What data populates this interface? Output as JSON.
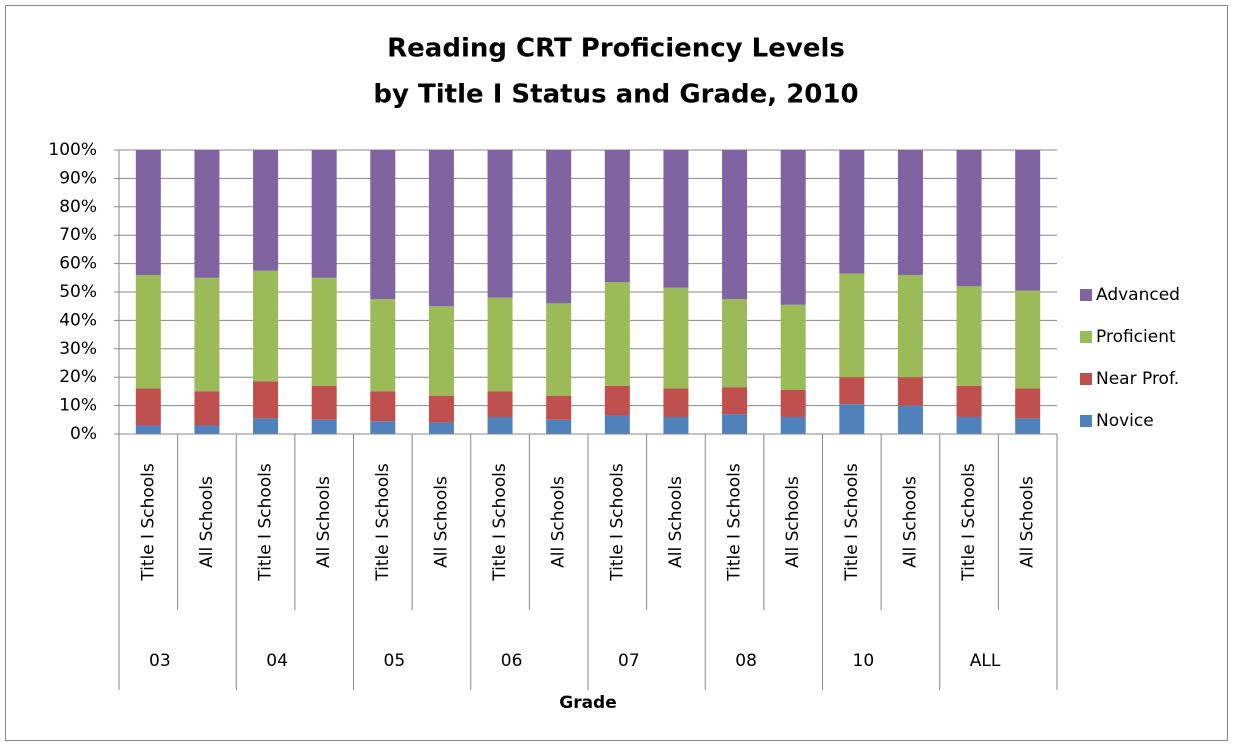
{
  "chart_data": {
    "type": "stacked_bar",
    "title": [
      "Reading CRT Proficiency Levels",
      "by Title I Status and Grade, 2010"
    ],
    "x_label": "Grade",
    "categories": [
      "Title I Schools",
      "All Schools",
      "Title I Schools",
      "All Schools",
      "Title I Schools",
      "All Schools",
      "Title I Schools",
      "All Schools",
      "Title I Schools",
      "All Schools",
      "Title I Schools",
      "All Schools",
      "Title I Schools",
      "All Schools",
      "Title I Schools",
      "All Schools"
    ],
    "groups": [
      "03",
      "04",
      "05",
      "06",
      "07",
      "08",
      "10",
      "ALL"
    ],
    "series": [
      {
        "name": "Novice",
        "color": "#4f81bd",
        "values": [
          3,
          3,
          5.5,
          5,
          4.5,
          4,
          6,
          5,
          6.5,
          6,
          7,
          6,
          10.5,
          10,
          6,
          5.5
        ]
      },
      {
        "name": "Near Prof.",
        "color": "#c0504d",
        "values": [
          13,
          12,
          13,
          12,
          10.5,
          9.5,
          9,
          8.5,
          10.5,
          10,
          9.5,
          9.5,
          9.5,
          10,
          11,
          10.5
        ]
      },
      {
        "name": "Proficient",
        "color": "#9bbb59",
        "values": [
          40,
          40,
          39,
          38,
          32.5,
          31.5,
          33,
          32.5,
          36.5,
          35.5,
          31,
          30,
          36.5,
          36,
          35,
          34.5
        ]
      },
      {
        "name": "Advanced",
        "color": "#8064a2",
        "values": [
          44,
          45,
          42.5,
          45,
          52.5,
          55,
          52,
          54,
          46.5,
          48.5,
          52.5,
          54.5,
          43.5,
          44,
          48,
          49.5
        ]
      }
    ],
    "ylim": [
      0,
      100
    ],
    "yticks": [
      {
        "value": 0,
        "label": "0%"
      },
      {
        "value": 10,
        "label": "10%"
      },
      {
        "value": 20,
        "label": "20%"
      },
      {
        "value": 30,
        "label": "30%"
      },
      {
        "value": 40,
        "label": "40%"
      },
      {
        "value": 50,
        "label": "50%"
      },
      {
        "value": 60,
        "label": "60%"
      },
      {
        "value": 70,
        "label": "70%"
      },
      {
        "value": 80,
        "label": "80%"
      },
      {
        "value": 90,
        "label": "90%"
      },
      {
        "value": 100,
        "label": "100%"
      }
    ],
    "grid": true,
    "legend": "right"
  }
}
